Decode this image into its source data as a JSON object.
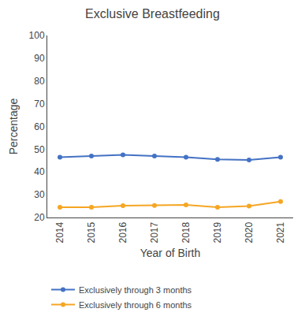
{
  "chart_data": {
    "type": "line",
    "title": "Exclusive Breastfeeding",
    "xlabel": "Year of Birth",
    "ylabel": "Percentage",
    "x": [
      2014,
      2015,
      2016,
      2017,
      2018,
      2019,
      2020,
      2021
    ],
    "series": [
      {
        "name": "Exclusively through 3 months",
        "color": "#4472c4",
        "values": [
          46.5,
          47.0,
          47.5,
          47.0,
          46.5,
          45.5,
          45.3,
          46.5
        ]
      },
      {
        "name": "Exclusively through 6 months",
        "color": "#f5a623",
        "values": [
          24.5,
          24.5,
          25.2,
          25.3,
          25.5,
          24.5,
          25.0,
          27.0
        ]
      }
    ],
    "xlim": [
      2013.6,
      2021.4
    ],
    "xticks": [
      2014,
      2015,
      2016,
      2017,
      2018,
      2019,
      2020,
      2021
    ],
    "ylim": [
      20,
      100
    ],
    "yticks": [
      20,
      30,
      40,
      50,
      60,
      70,
      80,
      90,
      100
    ],
    "grid": false,
    "legend": "bottom",
    "marker": "circle"
  }
}
